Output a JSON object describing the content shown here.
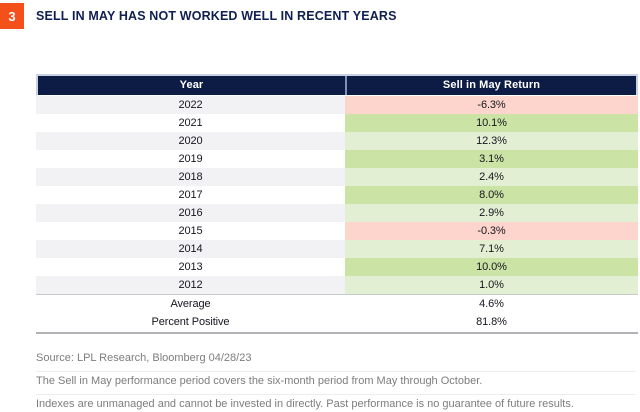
{
  "figure": {
    "number": "3",
    "title": "SELL IN MAY HAS NOT WORKED WELL IN RECENT YEARS"
  },
  "table": {
    "columns": [
      "Year",
      "Sell in May Return"
    ],
    "rows": [
      {
        "year": "2022",
        "value": "-6.3%",
        "tone": "negative"
      },
      {
        "year": "2021",
        "value": "10.1%",
        "tone": "positive_strong"
      },
      {
        "year": "2020",
        "value": "12.3%",
        "tone": "positive_light"
      },
      {
        "year": "2019",
        "value": "3.1%",
        "tone": "positive_strong"
      },
      {
        "year": "2018",
        "value": "2.4%",
        "tone": "positive_light"
      },
      {
        "year": "2017",
        "value": "8.0%",
        "tone": "positive_strong"
      },
      {
        "year": "2016",
        "value": "2.9%",
        "tone": "positive_light"
      },
      {
        "year": "2015",
        "value": "-0.3%",
        "tone": "negative"
      },
      {
        "year": "2014",
        "value": "7.1%",
        "tone": "positive_light"
      },
      {
        "year": "2013",
        "value": "10.0%",
        "tone": "positive_strong"
      },
      {
        "year": "2012",
        "value": "1.0%",
        "tone": "positive_light"
      }
    ],
    "summary_rows": [
      {
        "label": "Average",
        "value": "4.6%"
      },
      {
        "label": "Percent Positive",
        "value": "81.8%"
      }
    ]
  },
  "footer": {
    "source": "Source: LPL Research, Bloomberg  04/28/23",
    "notes": [
      "The Sell in May performance period covers the six-month period from May through October.",
      "Indexes are unmanaged and cannot be invested in directly. Past performance is no guarantee of future results."
    ]
  },
  "colors": {
    "accent_orange": "#f4501a",
    "header_navy": "#0d1c45",
    "negative_bg": "#fdd5cc",
    "positive_strong_bg": "#cbe3a4",
    "positive_light_bg": "#e3efd3",
    "row_alt_bg": "#f2f2f5"
  },
  "chart_data": {
    "type": "table",
    "title": "SELL IN MAY HAS NOT WORKED WELL IN RECENT YEARS",
    "columns": [
      "Year",
      "Sell in May Return"
    ],
    "years": [
      2022,
      2021,
      2020,
      2019,
      2018,
      2017,
      2016,
      2015,
      2014,
      2013,
      2012
    ],
    "sell_in_may_return_pct": [
      -6.3,
      10.1,
      12.3,
      3.1,
      2.4,
      8.0,
      2.9,
      -0.3,
      7.1,
      10.0,
      1.0
    ],
    "average_pct": 4.6,
    "percent_positive_pct": 81.8,
    "negative_highlight": "pink",
    "positive_highlight": "green",
    "source": "LPL Research, Bloomberg 04/28/23"
  }
}
